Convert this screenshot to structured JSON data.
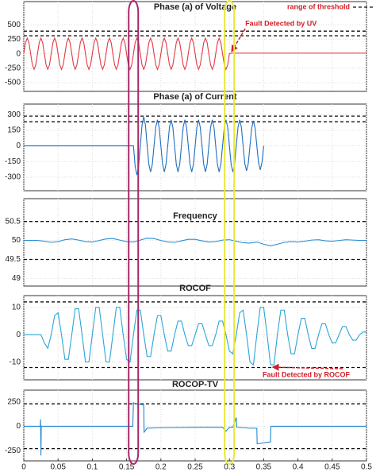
{
  "legend": {
    "label": "range of threshold",
    "color": "#d0202a"
  },
  "highlights": [
    {
      "x": 0.16,
      "color": "#a8286a"
    },
    {
      "x": 0.3,
      "color": "#e8e83a"
    }
  ],
  "chart_data": [
    {
      "type": "line",
      "title": "Phase (a) of Voltage",
      "color": "#e03a44",
      "xlim": [
        0,
        0.5
      ],
      "ylim": [
        -650,
        900
      ],
      "yticks": [
        -500,
        -250,
        0,
        250,
        500
      ],
      "grid": true,
      "thresholds": [
        390,
        310
      ],
      "annotation": {
        "text": "Fault Detected by UV",
        "x": 0.3,
        "y": 0
      },
      "x": [
        0,
        0.0025,
        0.005,
        0.0075,
        0.01,
        0.0125,
        0.015,
        0.0175,
        0.02,
        0.0225,
        0.025,
        0.0275,
        0.03,
        0.0325,
        0.035,
        0.0375,
        0.04,
        0.0425,
        0.045,
        0.0475,
        0.05,
        0.0525,
        0.055,
        0.0575,
        0.06,
        0.0625,
        0.065,
        0.0675,
        0.07,
        0.0725,
        0.075,
        0.0775,
        0.08,
        0.0825,
        0.085,
        0.0875,
        0.09,
        0.0925,
        0.095,
        0.0975,
        0.1,
        0.1025,
        0.105,
        0.1075,
        0.11,
        0.1125,
        0.115,
        0.1175,
        0.12,
        0.1225,
        0.125,
        0.1275,
        0.13,
        0.1325,
        0.135,
        0.1375,
        0.14,
        0.1425,
        0.145,
        0.1475,
        0.15,
        0.1525,
        0.155,
        0.1575,
        0.16,
        0.1625,
        0.165,
        0.1675,
        0.17,
        0.1725,
        0.175,
        0.1775,
        0.18,
        0.1825,
        0.185,
        0.1875,
        0.19,
        0.1925,
        0.195,
        0.1975,
        0.2,
        0.2025,
        0.205,
        0.2075,
        0.21,
        0.2125,
        0.215,
        0.2175,
        0.22,
        0.2225,
        0.225,
        0.2275,
        0.23,
        0.2325,
        0.235,
        0.2375,
        0.24,
        0.2425,
        0.245,
        0.2475,
        0.25,
        0.2525,
        0.255,
        0.2575,
        0.26,
        0.2625,
        0.265,
        0.2675,
        0.27,
        0.2725,
        0.275,
        0.2775,
        0.28,
        0.2825,
        0.285,
        0.2875,
        0.29,
        0.2925,
        0.295,
        0.2975,
        0.3,
        0.3025,
        0.5
      ],
      "values": [
        0,
        191,
        270,
        191,
        0,
        -191,
        -270,
        -191,
        0,
        191,
        270,
        191,
        0,
        -191,
        -270,
        -191,
        0,
        191,
        270,
        191,
        0,
        -191,
        -270,
        -191,
        0,
        191,
        270,
        191,
        0,
        -191,
        -270,
        -191,
        0,
        191,
        270,
        191,
        0,
        -191,
        -270,
        -191,
        0,
        191,
        270,
        191,
        0,
        -191,
        -270,
        -191,
        0,
        191,
        270,
        191,
        0,
        -191,
        -270,
        -191,
        0,
        191,
        270,
        191,
        0,
        -191,
        -270,
        -191,
        0,
        191,
        270,
        191,
        0,
        -191,
        -270,
        -191,
        0,
        191,
        270,
        191,
        0,
        -191,
        -270,
        -191,
        0,
        191,
        270,
        191,
        0,
        -191,
        -270,
        -191,
        0,
        191,
        270,
        191,
        0,
        -191,
        -270,
        -191,
        0,
        191,
        270,
        191,
        0,
        -191,
        -270,
        -191,
        0,
        191,
        270,
        191,
        0,
        -191,
        -270,
        -191,
        0,
        191,
        270,
        191,
        0,
        -191,
        -270,
        -191,
        0,
        10,
        10
      ]
    },
    {
      "type": "line",
      "title": "Phase (a) of Current",
      "color": "#1f6fc0",
      "xlim": [
        0,
        0.5
      ],
      "ylim": [
        -430,
        400
      ],
      "yticks": [
        -300,
        -150,
        0,
        150,
        300
      ],
      "grid": true,
      "thresholds": [
        285,
        230
      ],
      "x": [
        0,
        0.1575,
        0.16,
        0.1625,
        0.165,
        0.1675,
        0.17,
        0.1725,
        0.175,
        0.1775,
        0.18,
        0.1825,
        0.185,
        0.1875,
        0.19,
        0.1925,
        0.195,
        0.1975,
        0.2,
        0.2025,
        0.205,
        0.2075,
        0.21,
        0.2125,
        0.215,
        0.2175,
        0.22,
        0.2225,
        0.225,
        0.2275,
        0.23,
        0.2325,
        0.235,
        0.2375,
        0.24,
        0.2425,
        0.245,
        0.2475,
        0.25,
        0.2525,
        0.255,
        0.2575,
        0.26,
        0.2625,
        0.265,
        0.2675,
        0.27,
        0.2725,
        0.275,
        0.2775,
        0.28,
        0.2825,
        0.285,
        0.2875,
        0.29,
        0.2925,
        0.295,
        0.2975,
        0.3,
        0.3025,
        0.305,
        0.3075,
        0.31,
        0.3125,
        0.315,
        0.3175,
        0.32,
        0.3225,
        0.325,
        0.3275,
        0.33,
        0.3325,
        0.335,
        0.3375,
        0.34,
        0.3425,
        0.345,
        0.3475,
        0.35
      ],
      "values": [
        0,
        0,
        0,
        -198,
        -280,
        -198,
        0,
        198,
        280,
        198,
        0,
        -177,
        -250,
        -177,
        0,
        177,
        250,
        177,
        0,
        -177,
        -250,
        -177,
        0,
        177,
        250,
        177,
        0,
        -177,
        -250,
        -177,
        0,
        177,
        250,
        177,
        0,
        -177,
        -250,
        -177,
        0,
        177,
        250,
        177,
        0,
        -177,
        -250,
        -177,
        0,
        177,
        250,
        177,
        0,
        -177,
        -250,
        -177,
        0,
        177,
        250,
        177,
        0,
        -177,
        -250,
        -177,
        0,
        177,
        250,
        177,
        0,
        -170,
        -240,
        -170,
        0,
        170,
        240,
        170,
        0,
        -160,
        -230,
        -160,
        0
      ]
    },
    {
      "type": "line",
      "title": "Frequency",
      "color": "#2a8fd6",
      "xlim": [
        0,
        0.5
      ],
      "ylim": [
        48.8,
        51.1
      ],
      "yticks": [
        49,
        49.5,
        50,
        50.5
      ],
      "grid": true,
      "thresholds": [
        50.5,
        49.5
      ],
      "x": [
        0,
        0.01,
        0.02,
        0.03,
        0.04,
        0.05,
        0.06,
        0.07,
        0.08,
        0.09,
        0.1,
        0.11,
        0.12,
        0.13,
        0.14,
        0.15,
        0.16,
        0.17,
        0.18,
        0.19,
        0.2,
        0.21,
        0.22,
        0.23,
        0.24,
        0.25,
        0.26,
        0.27,
        0.28,
        0.29,
        0.3,
        0.31,
        0.32,
        0.33,
        0.34,
        0.35,
        0.36,
        0.37,
        0.38,
        0.39,
        0.4,
        0.41,
        0.42,
        0.43,
        0.44,
        0.45,
        0.46,
        0.47,
        0.48,
        0.49,
        0.5
      ],
      "values": [
        50,
        50,
        50,
        49.98,
        49.95,
        49.97,
        50.02,
        50.04,
        50.01,
        49.97,
        49.96,
        50,
        50.04,
        50.05,
        50.01,
        49.97,
        49.96,
        50.01,
        50.06,
        50.05,
        50,
        49.96,
        49.95,
        49.99,
        50.03,
        50.03,
        49.99,
        49.96,
        49.97,
        50.01,
        50.02,
        49.98,
        49.94,
        49.93,
        49.96,
        49.9,
        49.86,
        49.9,
        49.95,
        49.97,
        49.96,
        49.98,
        50.01,
        50.02,
        49.99,
        49.98,
        50,
        50.02,
        50.01,
        50,
        50
      ]
    },
    {
      "type": "line",
      "title": "ROCOF",
      "color": "#2aa6d6",
      "xlim": [
        0,
        0.5
      ],
      "ylim": [
        -16.5,
        14.3
      ],
      "yticks": [
        -10,
        0,
        10
      ],
      "grid": true,
      "thresholds": [
        12,
        -12
      ],
      "annotation": {
        "text": "Fault Detected by ROCOF",
        "x": 0.36,
        "y": -11
      },
      "x": [
        0,
        0.005,
        0.01,
        0.015,
        0.02,
        0.025,
        0.03,
        0.035,
        0.04,
        0.045,
        0.05,
        0.055,
        0.06,
        0.065,
        0.07,
        0.075,
        0.08,
        0.085,
        0.09,
        0.095,
        0.1,
        0.105,
        0.11,
        0.115,
        0.12,
        0.125,
        0.13,
        0.135,
        0.14,
        0.145,
        0.15,
        0.155,
        0.16,
        0.165,
        0.17,
        0.175,
        0.18,
        0.185,
        0.19,
        0.195,
        0.2,
        0.205,
        0.21,
        0.215,
        0.22,
        0.225,
        0.23,
        0.235,
        0.24,
        0.245,
        0.25,
        0.255,
        0.26,
        0.265,
        0.27,
        0.275,
        0.28,
        0.285,
        0.29,
        0.295,
        0.3,
        0.305,
        0.31,
        0.315,
        0.32,
        0.325,
        0.33,
        0.335,
        0.34,
        0.345,
        0.35,
        0.355,
        0.36,
        0.365,
        0.37,
        0.375,
        0.38,
        0.385,
        0.39,
        0.395,
        0.4,
        0.405,
        0.41,
        0.415,
        0.42,
        0.425,
        0.43,
        0.435,
        0.44,
        0.445,
        0.45,
        0.455,
        0.46,
        0.465,
        0.47,
        0.475,
        0.48,
        0.485,
        0.49,
        0.495,
        0.5
      ],
      "values": [
        0,
        0,
        0,
        0,
        0,
        0,
        -3,
        -5,
        0,
        7,
        8,
        0,
        -9,
        -9,
        0,
        9.5,
        9.5,
        0,
        -10,
        -10,
        0,
        10,
        10,
        0,
        -10,
        -10,
        0,
        10,
        10,
        0,
        -9,
        -10,
        0,
        9,
        9,
        0,
        -8,
        -8,
        0,
        7,
        7,
        0,
        -6,
        -6,
        0,
        5,
        5,
        0,
        -4,
        -4,
        0,
        4,
        4,
        0,
        -4,
        -4,
        0,
        5,
        5,
        0,
        -6,
        -7,
        0,
        8,
        9,
        0,
        -10,
        -11,
        0,
        10,
        10,
        0,
        -11,
        -11,
        0,
        9,
        9,
        0,
        -7,
        -7,
        0,
        6,
        6,
        0,
        -5,
        -5,
        0,
        4,
        4,
        0,
        -3,
        -3,
        0,
        3,
        3,
        0,
        -2,
        -2,
        0,
        1,
        1
      ]
    },
    {
      "type": "line",
      "title": "ROCOP-TV",
      "color": "#1e88d0",
      "xlim": [
        0,
        0.5
      ],
      "ylim": [
        -355,
        370
      ],
      "yticks": [
        -250,
        0,
        250
      ],
      "grid": true,
      "thresholds": [
        230,
        -230
      ],
      "xticks": [
        0,
        0.05,
        0.1,
        0.15,
        0.2,
        0.25,
        0.3,
        0.35,
        0.4,
        0.45,
        0.5
      ],
      "x": [
        0,
        0.024,
        0.0245,
        0.025,
        0.0255,
        0.159,
        0.16,
        0.165,
        0.175,
        0.1755,
        0.18,
        0.2,
        0.25,
        0.29,
        0.295,
        0.3,
        0.305,
        0.31,
        0.3105,
        0.311,
        0.33,
        0.34,
        0.3405,
        0.36,
        0.3605,
        0.4,
        0.5
      ],
      "values": [
        0,
        0,
        70,
        -300,
        0,
        0,
        240,
        230,
        220,
        -60,
        -20,
        -15,
        -10,
        -10,
        -50,
        -10,
        -10,
        90,
        0,
        -10,
        -20,
        -20,
        -180,
        -160,
        0,
        0,
        0
      ]
    }
  ]
}
